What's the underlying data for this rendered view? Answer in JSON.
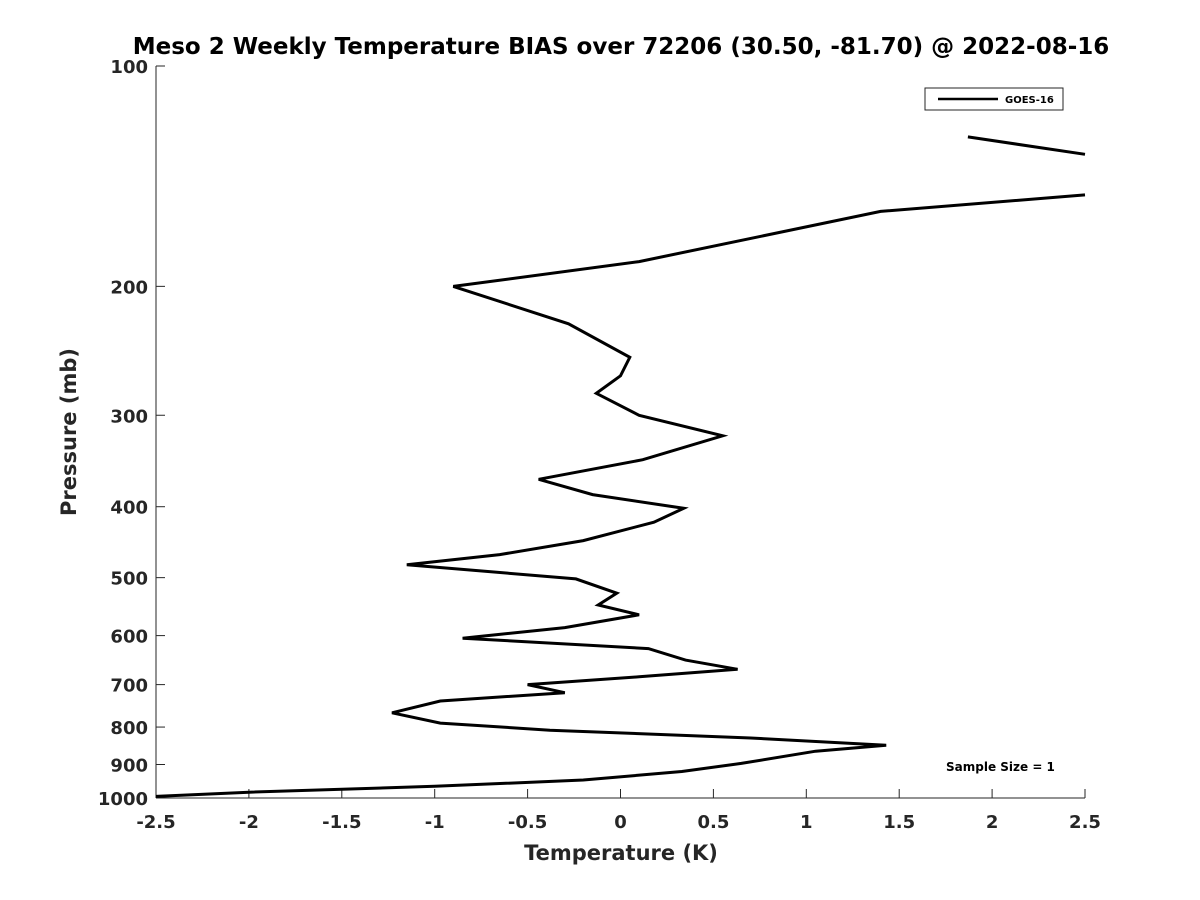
{
  "chart_data": {
    "type": "line",
    "title": "Meso 2 Weekly Temperature BIAS over 72206 (30.50, -81.70) @ 2022-08-16",
    "xlabel": "Temperature (K)",
    "ylabel": "Pressure (mb)",
    "xlim": [
      -2.5,
      2.5
    ],
    "ylim": [
      100,
      1000
    ],
    "y_scale": "log",
    "y_reversed": true,
    "grid": false,
    "x_ticks": [
      -2.5,
      -2,
      -1.5,
      -1,
      -0.5,
      0,
      0.5,
      1,
      1.5,
      2,
      2.5
    ],
    "x_tick_labels": [
      "-2.5",
      "-2",
      "-1.5",
      "-1",
      "-0.5",
      "0",
      "0.5",
      "1",
      "1.5",
      "2",
      "2.5"
    ],
    "y_ticks": [
      100,
      200,
      300,
      400,
      500,
      600,
      700,
      800,
      900,
      1000
    ],
    "y_tick_labels": [
      "100",
      "200",
      "300",
      "400",
      "500",
      "600",
      "700",
      "800",
      "900",
      "1000"
    ],
    "legend": {
      "placement": "top-right",
      "entries": [
        "GOES-16"
      ]
    },
    "annotation": "Sample Size = 1",
    "line_color": "#000000",
    "series": [
      {
        "name": "GOES-16",
        "segments": [
          [
            {
              "x": 1.87,
              "p": 125
            },
            {
              "x": 2.5,
              "p": 132
            }
          ],
          [
            {
              "x": 2.5,
              "p": 150
            },
            {
              "x": 1.4,
              "p": 158
            },
            {
              "x": 0.1,
              "p": 185
            },
            {
              "x": -0.9,
              "p": 200
            },
            {
              "x": -0.28,
              "p": 225
            },
            {
              "x": 0.05,
              "p": 250
            },
            {
              "x": 0.0,
              "p": 265
            },
            {
              "x": -0.13,
              "p": 280
            },
            {
              "x": 0.1,
              "p": 300
            },
            {
              "x": 0.55,
              "p": 320
            },
            {
              "x": 0.12,
              "p": 345
            },
            {
              "x": -0.44,
              "p": 367
            },
            {
              "x": -0.15,
              "p": 385
            },
            {
              "x": 0.34,
              "p": 402
            },
            {
              "x": 0.18,
              "p": 420
            },
            {
              "x": -0.2,
              "p": 445
            },
            {
              "x": -0.65,
              "p": 465
            },
            {
              "x": -1.15,
              "p": 480
            },
            {
              "x": -0.24,
              "p": 502
            },
            {
              "x": -0.02,
              "p": 525
            },
            {
              "x": -0.12,
              "p": 545
            },
            {
              "x": 0.1,
              "p": 562
            },
            {
              "x": -0.3,
              "p": 585
            },
            {
              "x": -0.85,
              "p": 605
            },
            {
              "x": 0.15,
              "p": 625
            },
            {
              "x": 0.35,
              "p": 648
            },
            {
              "x": 0.63,
              "p": 667
            },
            {
              "x": 0.1,
              "p": 683
            },
            {
              "x": -0.5,
              "p": 700
            },
            {
              "x": -0.3,
              "p": 718
            },
            {
              "x": -0.97,
              "p": 737
            },
            {
              "x": -1.23,
              "p": 765
            },
            {
              "x": -0.97,
              "p": 790
            },
            {
              "x": -0.38,
              "p": 808
            },
            {
              "x": 0.7,
              "p": 828
            },
            {
              "x": 1.43,
              "p": 847
            },
            {
              "x": 1.05,
              "p": 863
            },
            {
              "x": 0.65,
              "p": 897
            },
            {
              "x": 0.33,
              "p": 920
            },
            {
              "x": -0.2,
              "p": 945
            },
            {
              "x": -1.0,
              "p": 964
            },
            {
              "x": -2.0,
              "p": 982
            },
            {
              "x": -2.5,
              "p": 995
            }
          ]
        ]
      }
    ]
  }
}
